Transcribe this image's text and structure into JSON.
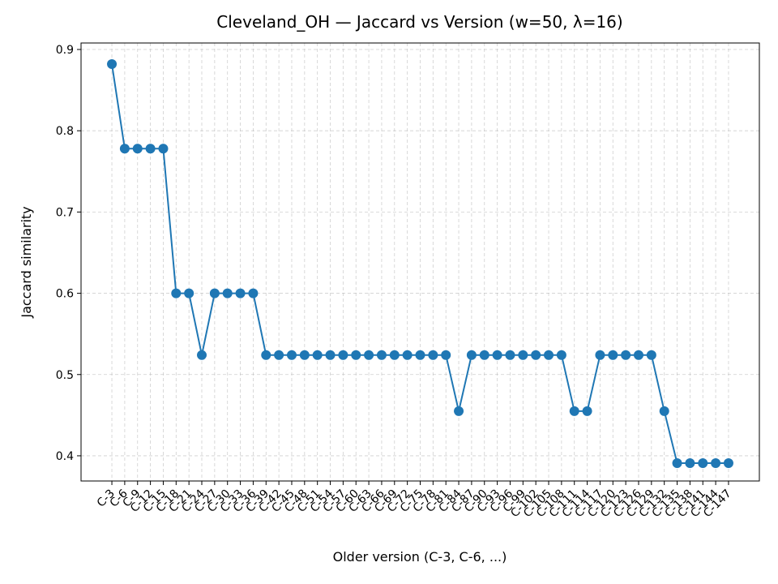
{
  "chart_data": {
    "type": "line",
    "title": "Cleveland_OH — Jaccard vs Version (w=50, λ=16)",
    "x_label": "Older version (C-3, C-6, ...)",
    "y_label": "Jaccard similarity",
    "categories": [
      "C-3",
      "C-6",
      "C-9",
      "C-12",
      "C-15",
      "C-18",
      "C-21",
      "C-24",
      "C-27",
      "C-30",
      "C-33",
      "C-36",
      "C-39",
      "C-42",
      "C-45",
      "C-48",
      "C-51",
      "C-54",
      "C-57",
      "C-60",
      "C-63",
      "C-66",
      "C-69",
      "C-72",
      "C-75",
      "C-78",
      "C-81",
      "C-84",
      "C-87",
      "C-90",
      "C-93",
      "C-96",
      "C-99",
      "C-102",
      "C-105",
      "C-108",
      "C-111",
      "C-114",
      "C-117",
      "C-120",
      "C-123",
      "C-126",
      "C-129",
      "C-132",
      "C-135",
      "C-138",
      "C-141",
      "C-144",
      "C-147"
    ],
    "values": [
      0.882,
      0.778,
      0.778,
      0.778,
      0.778,
      0.6,
      0.6,
      0.524,
      0.6,
      0.6,
      0.6,
      0.6,
      0.524,
      0.524,
      0.524,
      0.524,
      0.524,
      0.524,
      0.524,
      0.524,
      0.524,
      0.524,
      0.524,
      0.524,
      0.524,
      0.524,
      0.524,
      0.455,
      0.524,
      0.524,
      0.524,
      0.524,
      0.524,
      0.524,
      0.524,
      0.524,
      0.455,
      0.455,
      0.524,
      0.524,
      0.524,
      0.524,
      0.524,
      0.455,
      0.391,
      0.391,
      0.391,
      0.391,
      0.391
    ],
    "color": "#1f77b4",
    "ylim": [
      0.369,
      0.908
    ],
    "yticks": [
      0.4,
      0.5,
      0.6,
      0.7,
      0.8,
      0.9
    ],
    "grid": true
  }
}
